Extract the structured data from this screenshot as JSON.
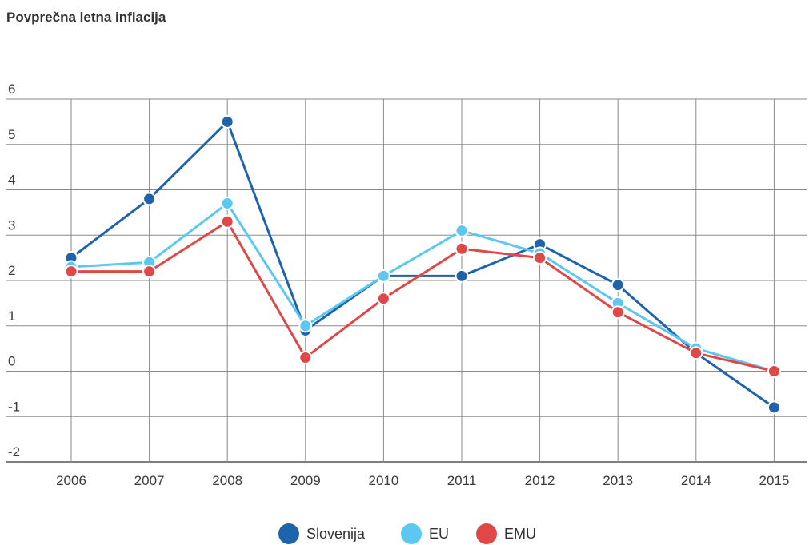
{
  "chart_data": {
    "type": "line",
    "title": "Povprečna letna inflacija",
    "categories": [
      "2006",
      "2007",
      "2008",
      "2009",
      "2010",
      "2011",
      "2012",
      "2013",
      "2014",
      "2015"
    ],
    "y_ticks": [
      "6",
      "5",
      "4",
      "3",
      "2",
      "1",
      "0",
      "-1",
      "-2"
    ],
    "ylim": [
      -2,
      6
    ],
    "grid": true,
    "legend_position": "bottom",
    "series": [
      {
        "name": "Slovenija",
        "color": "#1f63ad",
        "values": [
          2.5,
          3.8,
          5.5,
          0.9,
          2.1,
          2.1,
          2.8,
          1.9,
          0.4,
          -0.8
        ]
      },
      {
        "name": "EU",
        "color": "#5cc8f2",
        "values": [
          2.3,
          2.4,
          3.7,
          1.0,
          2.1,
          3.1,
          2.6,
          1.5,
          0.5,
          0.0
        ]
      },
      {
        "name": "EMU",
        "color": "#e04848",
        "values": [
          2.2,
          2.2,
          3.3,
          0.3,
          1.6,
          2.7,
          2.5,
          1.3,
          0.4,
          0.0
        ]
      }
    ]
  }
}
